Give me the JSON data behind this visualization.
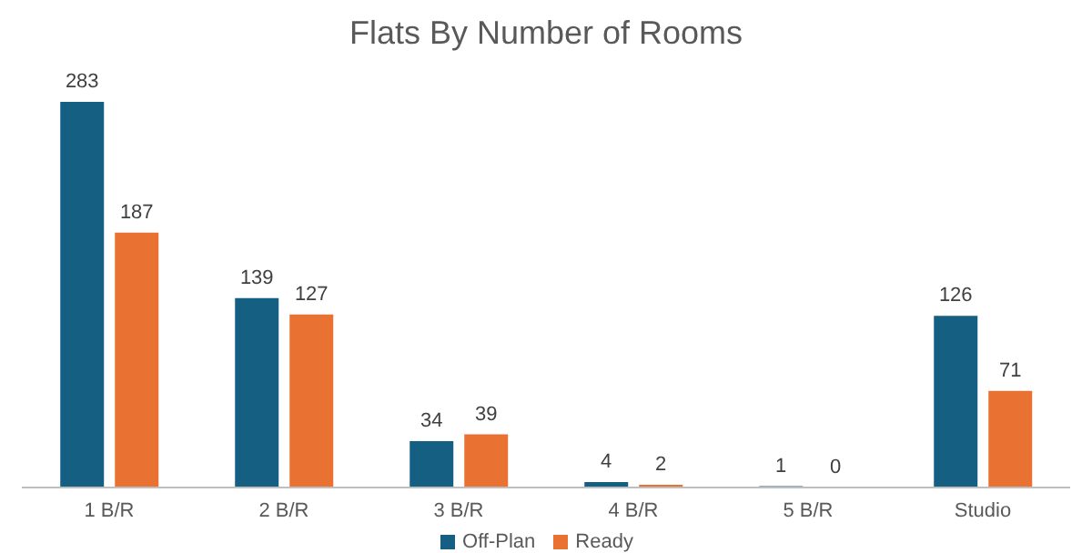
{
  "chart_data": {
    "type": "bar",
    "title": "Flats By Number of Rooms",
    "categories": [
      "1 B/R",
      "2 B/R",
      "3 B/R",
      "4 B/R",
      "5 B/R",
      "Studio"
    ],
    "series": [
      {
        "name": "Off-Plan",
        "color": "#156082",
        "values": [
          283,
          139,
          34,
          4,
          1,
          126
        ]
      },
      {
        "name": "Ready",
        "color": "#e97132",
        "values": [
          187,
          127,
          39,
          2,
          0,
          71
        ]
      }
    ],
    "data_labels": true,
    "legend": "bottom",
    "grid": false
  }
}
